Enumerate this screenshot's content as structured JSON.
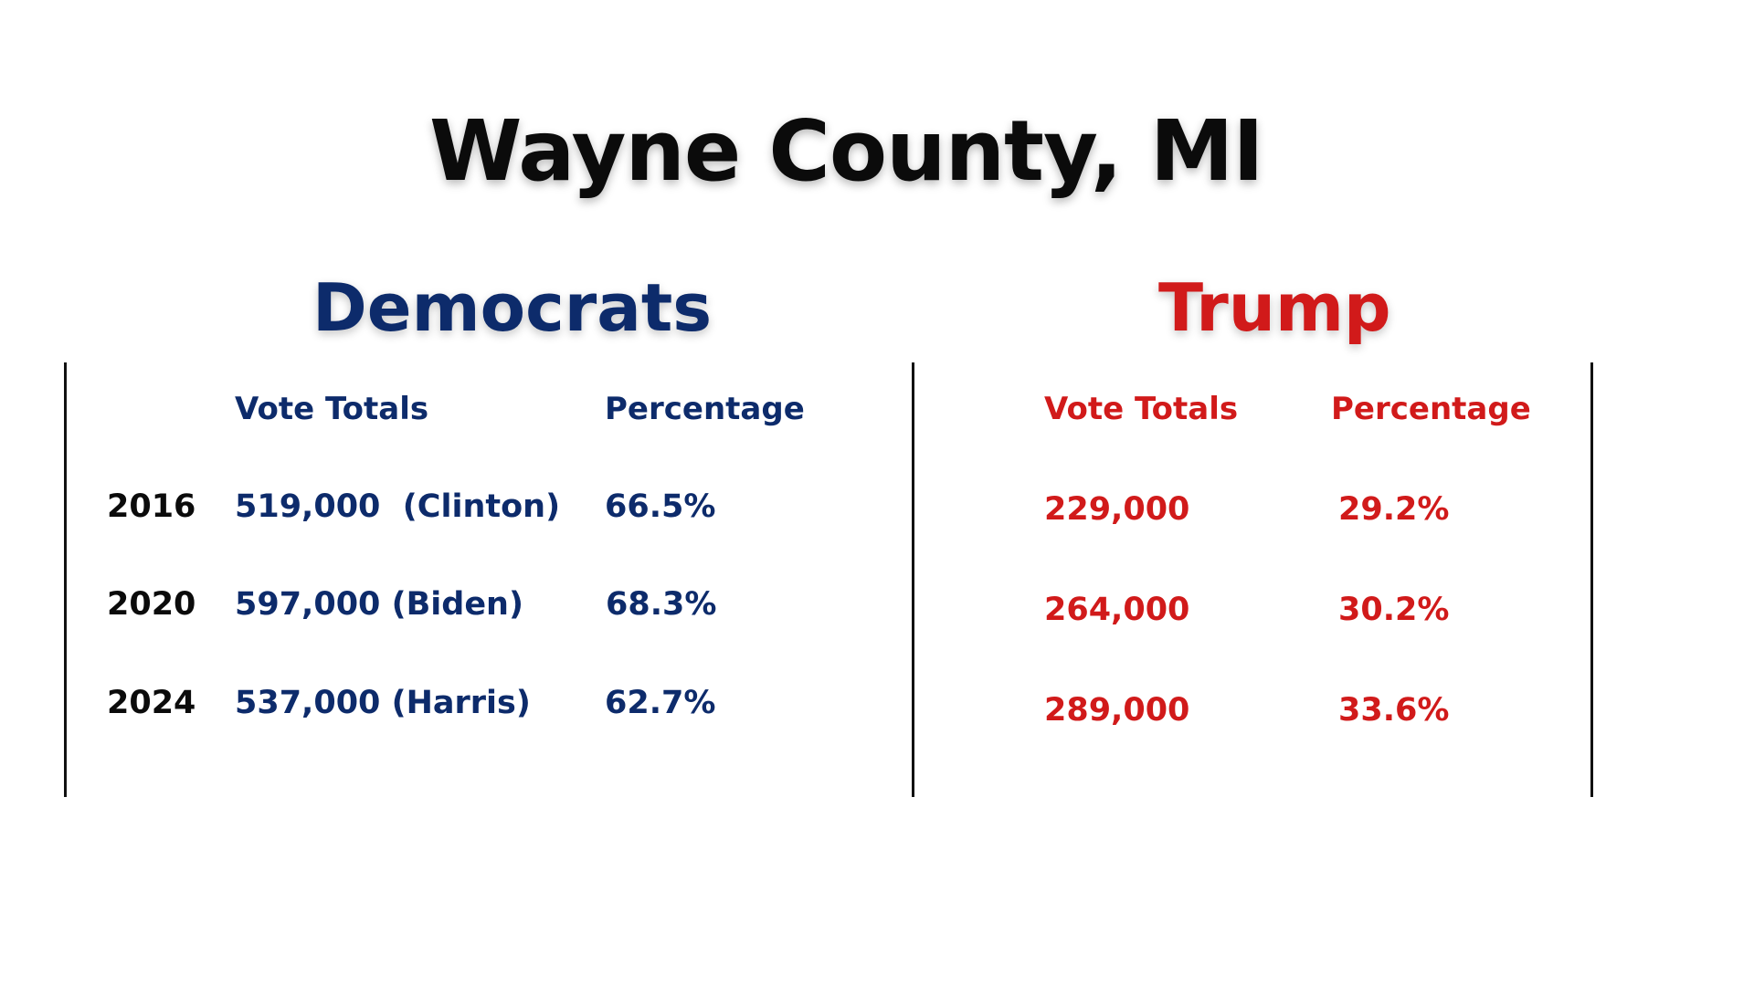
{
  "title": "Wayne County, MI",
  "colors": {
    "democrats": "#0d2b6b",
    "trump": "#d11a1a",
    "text": "#0b0b0b"
  },
  "democrats": {
    "heading": "Democrats",
    "vote_totals_header": "Vote Totals",
    "percentage_header": "Percentage",
    "rows": [
      {
        "year": "2016",
        "votes": "519,000  (Clinton)",
        "pct": "66.5%"
      },
      {
        "year": "2020",
        "votes": "597,000 (Biden)",
        "pct": "68.3%"
      },
      {
        "year": "2024",
        "votes": "537,000 (Harris)",
        "pct": "62.7%"
      }
    ]
  },
  "trump": {
    "heading": "Trump",
    "vote_totals_header": "Vote Totals",
    "percentage_header": "Percentage",
    "rows": [
      {
        "votes": "229,000",
        "pct": "29.2%"
      },
      {
        "votes": "264,000",
        "pct": "30.2%"
      },
      {
        "votes": "289,000",
        "pct": "33.6%"
      }
    ]
  }
}
